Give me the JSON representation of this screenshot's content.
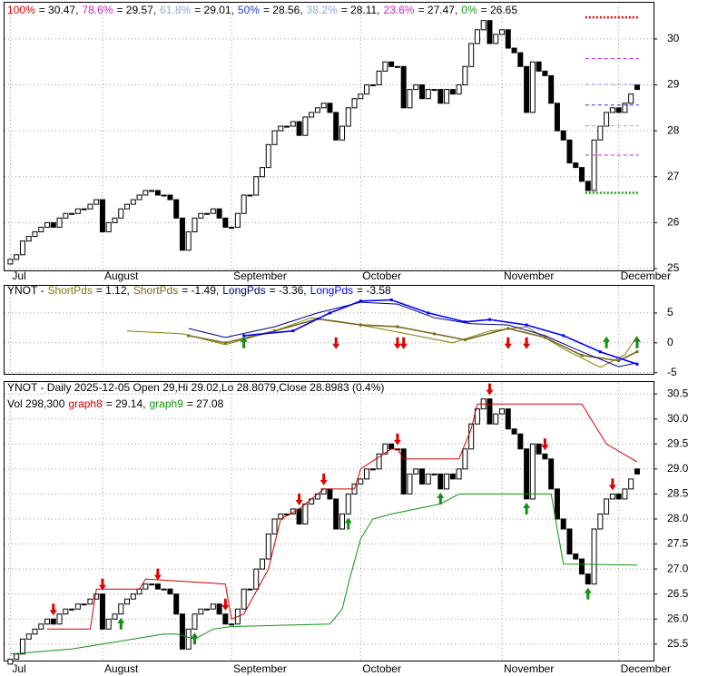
{
  "chart_data": [
    {
      "type": "candlestick",
      "ylim": [
        24.96,
        30.69
      ],
      "yticks": [
        25,
        26,
        27,
        28,
        29,
        30
      ],
      "grid": true,
      "month_ticks": [
        {
          "value": 0,
          "label": "Jul"
        },
        {
          "value": 15,
          "label": "August"
        },
        {
          "value": 36,
          "label": "September"
        },
        {
          "value": 57,
          "label": "October"
        },
        {
          "value": 80,
          "label": "November"
        },
        {
          "value": 99,
          "label": "December"
        }
      ],
      "fib_levels": [
        {
          "label": "100%",
          "value": 30.47,
          "value_label": "= 30.47,",
          "color": "#e00000"
        },
        {
          "label": "78.6%",
          "value": 29.57,
          "value_label": "= 29.57,",
          "color": "#d020d0"
        },
        {
          "label": "61.8%",
          "value": 29.01,
          "value_label": "= 29.01,",
          "color": "#8fa8d8"
        },
        {
          "label": "50%",
          "value": 28.56,
          "value_label": "= 28.56,",
          "color": "#2040d0"
        },
        {
          "label": "38.2%",
          "value": 28.11,
          "value_label": "= 28.11,",
          "color": "#8fa8d8"
        },
        {
          "label": "23.6%",
          "value": 27.47,
          "value_label": "= 27.47,",
          "color": "#d020d0"
        },
        {
          "label": "0%",
          "value": 26.65,
          "value_label": "= 26.65",
          "color": "#10a010"
        }
      ],
      "fib_range": [
        94,
        102
      ],
      "open": [
        25.1,
        25.2,
        25.3,
        25.6,
        25.7,
        25.8,
        25.9,
        26.0,
        25.9,
        26.1,
        26.2,
        26.2,
        26.3,
        26.3,
        26.4,
        26.5,
        25.8,
        26.0,
        26.1,
        26.3,
        26.4,
        26.5,
        26.6,
        26.7,
        26.7,
        26.6,
        26.6,
        26.5,
        26.1,
        25.4,
        25.8,
        26.1,
        26.2,
        26.2,
        26.3,
        26.1,
        25.9,
        25.9,
        26.2,
        26.6,
        26.6,
        27.0,
        27.2,
        27.7,
        28.0,
        28.1,
        28.1,
        28.2,
        27.9,
        28.3,
        28.4,
        28.5,
        28.6,
        28.4,
        27.8,
        28.1,
        28.5,
        28.7,
        28.8,
        29.0,
        29.0,
        29.3,
        29.5,
        29.4,
        29.4,
        28.5,
        28.9,
        29.0,
        28.7,
        28.9,
        28.9,
        28.6,
        28.9,
        28.8,
        29.0,
        29.4,
        29.9,
        30.2,
        30.4,
        29.9,
        30.1,
        30.2,
        29.8,
        29.7,
        29.4,
        28.4,
        29.5,
        29.3,
        29.2,
        28.6,
        28.0,
        27.8,
        27.3,
        27.2,
        26.9,
        26.7,
        27.8,
        28.1,
        28.4,
        28.5,
        28.4,
        28.6,
        29.0
      ],
      "close": [
        25.2,
        25.3,
        25.6,
        25.7,
        25.8,
        25.9,
        26.0,
        25.9,
        26.1,
        26.2,
        26.2,
        26.3,
        26.3,
        26.4,
        26.5,
        25.8,
        26.0,
        26.1,
        26.3,
        26.4,
        26.5,
        26.6,
        26.7,
        26.7,
        26.6,
        26.6,
        26.5,
        26.1,
        25.4,
        25.8,
        26.1,
        26.2,
        26.2,
        26.3,
        26.1,
        25.9,
        25.9,
        26.2,
        26.6,
        26.6,
        27.0,
        27.2,
        27.7,
        28.0,
        28.1,
        28.1,
        28.2,
        27.9,
        28.3,
        28.4,
        28.5,
        28.6,
        28.4,
        27.8,
        28.1,
        28.5,
        28.7,
        28.8,
        29.0,
        29.0,
        29.3,
        29.5,
        29.4,
        29.4,
        28.5,
        28.9,
        29.0,
        28.7,
        28.9,
        28.9,
        28.6,
        28.9,
        28.8,
        29.0,
        29.4,
        29.9,
        30.2,
        30.4,
        29.9,
        30.1,
        30.2,
        29.8,
        29.7,
        29.4,
        28.4,
        29.5,
        29.3,
        29.2,
        28.6,
        28.0,
        27.8,
        27.3,
        27.2,
        26.9,
        26.7,
        27.8,
        28.1,
        28.4,
        28.5,
        28.4,
        28.6,
        28.8,
        28.9
      ]
    },
    {
      "type": "line",
      "title": "YNOT -",
      "ylim": [
        -5.2,
        9.4
      ],
      "yticks": [
        5,
        0,
        -5
      ],
      "grid": true,
      "series": [
        {
          "name": "ShortPds",
          "value_label": "= 1.12,",
          "color": "#808000",
          "marker": false,
          "x": [
            19,
            28,
            35,
            43,
            49,
            54,
            60,
            66,
            72,
            78,
            84,
            90,
            96,
            100,
            102
          ],
          "values": [
            2.0,
            1.5,
            -0.3,
            2.0,
            4.2,
            3.5,
            2.4,
            1.2,
            0,
            2.0,
            2.7,
            -1.0,
            -4.1,
            -2.0,
            1.12
          ]
        },
        {
          "name": "ShortPds",
          "value_label": "= -1.49,",
          "color": "#7a6a1f",
          "marker": true,
          "x": [
            29,
            35,
            43,
            50,
            57,
            63,
            69,
            74,
            81,
            87,
            93,
            99,
            102
          ],
          "values": [
            1.2,
            0,
            2,
            4,
            3,
            2.7,
            1.5,
            0.5,
            2.4,
            0.9,
            -2.1,
            -3.0,
            -1.49
          ]
        },
        {
          "name": "LongPds",
          "value_label": "= -3.36,",
          "color": "#000080",
          "marker": false,
          "x": [
            29,
            35,
            43,
            50,
            57,
            63,
            69,
            75,
            81,
            87,
            93,
            99,
            102
          ],
          "values": [
            2.4,
            0.9,
            2.7,
            5,
            6.8,
            6.5,
            4.2,
            3.2,
            3.0,
            1.2,
            -1.5,
            -4,
            -3.36
          ]
        },
        {
          "name": "LongPds",
          "value_label": "= -3.58",
          "color": "#0000ff",
          "marker": true,
          "x": [
            38,
            46,
            52,
            57,
            62,
            68,
            74,
            78,
            84,
            90,
            96,
            102
          ],
          "values": [
            1.2,
            2,
            5,
            7,
            7.2,
            5,
            3.5,
            3.9,
            3,
            1.2,
            -1.5,
            -3.58
          ]
        }
      ],
      "buy_signals": [
        38,
        97,
        102
      ],
      "sell_signals": [
        53,
        63,
        64,
        81,
        84
      ]
    },
    {
      "type": "candlestick",
      "title": "YNOT - Daily 2025-12-05 Open 29,Hi 29.02,Lo 28.8079,Close 28.8983 (0.4%)",
      "volume": {
        "value": 298300,
        "label": "Vol 298,300"
      },
      "ylim": [
        25.17,
        30.72
      ],
      "grid": true,
      "yticks": [
        30.5,
        {
          "value": 30,
          "label": "30.0"
        },
        29.5,
        {
          "value": 29,
          "label": "29.0"
        },
        28.5,
        {
          "value": 28,
          "label": "28.0"
        },
        27.5,
        {
          "value": 27,
          "label": "27.0"
        },
        26.5,
        {
          "value": 26,
          "label": "26.0"
        },
        25.5
      ],
      "series": [
        {
          "name": "graph8",
          "value_label": "= 29.14,",
          "color": "#d00000",
          "x": [
            6,
            13,
            14,
            21,
            22,
            35,
            36,
            38,
            42,
            44,
            47,
            51,
            56,
            57,
            62,
            63,
            64,
            73,
            75,
            76,
            93,
            95,
            97,
            102
          ],
          "values": [
            25.8,
            25.8,
            26.6,
            26.6,
            26.8,
            26.7,
            26.0,
            26.1,
            27.0,
            28.0,
            28.2,
            28.6,
            28.6,
            29.0,
            29.4,
            29.4,
            29.2,
            29.2,
            29.8,
            30.3,
            30.3,
            29.9,
            29.5,
            29.14
          ]
        },
        {
          "name": "graph9",
          "value_label": "= 27.08",
          "color": "#109010",
          "x": [
            0,
            10,
            15,
            25,
            27,
            30,
            33,
            36,
            52,
            54,
            55,
            57,
            59,
            62,
            66,
            70,
            73,
            88,
            90,
            102
          ],
          "values": [
            25.3,
            25.4,
            25.5,
            25.7,
            25.7,
            25.6,
            25.8,
            25.85,
            25.9,
            26.2,
            26.7,
            27.6,
            28.0,
            28.1,
            28.2,
            28.3,
            28.5,
            28.5,
            27.1,
            27.08
          ]
        }
      ],
      "buy_signals": [
        18,
        30,
        55,
        70,
        84,
        94
      ],
      "sell_signals": [
        7,
        15,
        24,
        35,
        47,
        51,
        63,
        78,
        87,
        98
      ]
    }
  ]
}
